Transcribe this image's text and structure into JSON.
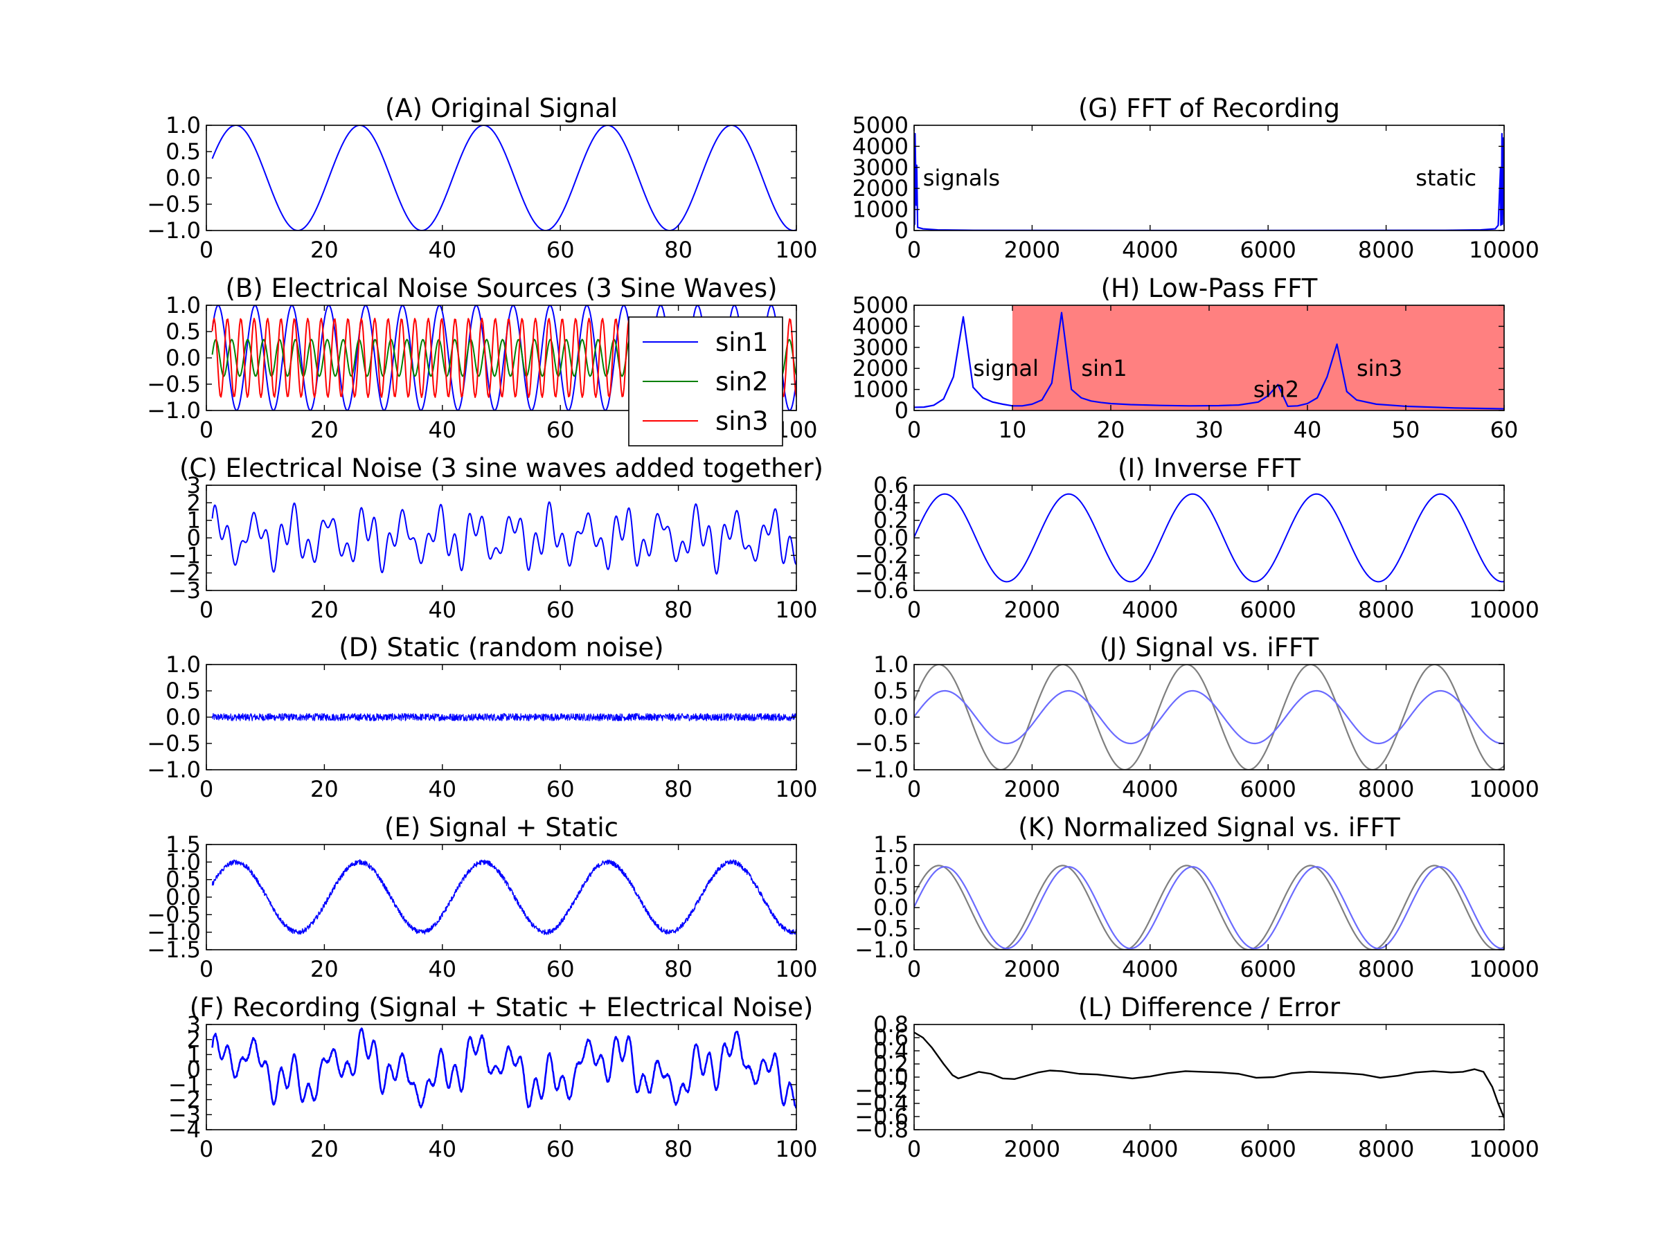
{
  "figure": {
    "colors": {
      "signal": "#0000ff",
      "sin1": "#0000ff",
      "sin2": "#008000",
      "sin3": "#ff0000",
      "ifft": "#6b6bff",
      "reference": "#7f7f7f",
      "error": "#000000",
      "stopband": "#ff8080"
    }
  },
  "chart_data": [
    {
      "id": "A",
      "type": "line",
      "title": "(A) Original Signal",
      "xlim": [
        0,
        100
      ],
      "ylim": [
        -1.0,
        1.0
      ],
      "xticks": [
        0,
        20,
        40,
        60,
        80,
        100
      ],
      "xtick_labels": [
        "0",
        "20",
        "40",
        "60",
        "80",
        "100"
      ],
      "yticks": [
        -1.0,
        -0.5,
        0.0,
        0.5,
        1.0
      ],
      "ytick_labels": [
        "−1.0",
        "−0.5",
        "0.0",
        "0.5",
        "1.0"
      ],
      "series": [
        {
          "style": "signal",
          "formula": "sin",
          "x_start": 1,
          "x_end": 100,
          "period": 21,
          "amplitude": 1.0,
          "peak_x": 5
        }
      ]
    },
    {
      "id": "B",
      "type": "line",
      "title": "(B) Electrical Noise Sources (3 Sine Waves)",
      "xlim": [
        0,
        100
      ],
      "ylim": [
        -1.0,
        1.0
      ],
      "xticks": [
        0,
        20,
        40,
        60,
        80,
        100
      ],
      "xtick_labels": [
        "0",
        "20",
        "40",
        "60",
        "80",
        "100"
      ],
      "yticks": [
        -1.0,
        -0.5,
        0.0,
        0.5,
        1.0
      ],
      "ytick_labels": [
        "−1.0",
        "−0.5",
        "0.0",
        "0.5",
        "1.0"
      ],
      "legend": {
        "placement": "lower-right",
        "entries": [
          "sin1",
          "sin2",
          "sin3"
        ]
      },
      "series": [
        {
          "name": "sin1",
          "style": "sin1",
          "formula": "sin",
          "x_start": 1,
          "x_end": 100,
          "period": 6.25,
          "amplitude": 1.0,
          "peak_x": 2
        },
        {
          "name": "sin2",
          "style": "sin2",
          "formula": "sin",
          "x_start": 1,
          "x_end": 100,
          "period": 2.7,
          "amplitude": 0.35,
          "peak_x": 1.6
        },
        {
          "name": "sin3",
          "style": "sin3",
          "formula": "sin",
          "x_start": 1,
          "x_end": 100,
          "period": 2.27,
          "amplitude": 0.75,
          "peak_x": 1.3
        }
      ]
    },
    {
      "id": "C",
      "type": "line",
      "title": "(C) Electrical Noise (3 sine waves added together)",
      "xlim": [
        0,
        100
      ],
      "ylim": [
        -3,
        3
      ],
      "xticks": [
        0,
        20,
        40,
        60,
        80,
        100
      ],
      "xtick_labels": [
        "0",
        "20",
        "40",
        "60",
        "80",
        "100"
      ],
      "yticks": [
        -3,
        -2,
        -1,
        0,
        1,
        2,
        3
      ],
      "ytick_labels": [
        "−3",
        "−2",
        "−1",
        "0",
        "1",
        "2",
        "3"
      ],
      "series": [
        {
          "style": "signal",
          "formula": "noise_sum",
          "x_start": 1,
          "x_end": 100
        }
      ]
    },
    {
      "id": "D",
      "type": "line",
      "title": "(D) Static (random noise)",
      "xlim": [
        0,
        100
      ],
      "ylim": [
        -1.0,
        1.0
      ],
      "xticks": [
        0,
        20,
        40,
        60,
        80,
        100
      ],
      "xtick_labels": [
        "0",
        "20",
        "40",
        "60",
        "80",
        "100"
      ],
      "yticks": [
        -1.0,
        -0.5,
        0.0,
        0.5,
        1.0
      ],
      "ytick_labels": [
        "−1.0",
        "−0.5",
        "0.0",
        "0.5",
        "1.0"
      ],
      "series": [
        {
          "style": "signal",
          "formula": "static",
          "x_start": 1,
          "x_end": 100,
          "band": 0.07
        }
      ]
    },
    {
      "id": "E",
      "type": "line",
      "title": "(E) Signal + Static",
      "xlim": [
        0,
        100
      ],
      "ylim": [
        -1.5,
        1.5
      ],
      "xticks": [
        0,
        20,
        40,
        60,
        80,
        100
      ],
      "xtick_labels": [
        "0",
        "20",
        "40",
        "60",
        "80",
        "100"
      ],
      "yticks": [
        -1.5,
        -1.0,
        -0.5,
        0.0,
        0.5,
        1.0,
        1.5
      ],
      "ytick_labels": [
        "−1.5",
        "−1.0",
        "−0.5",
        "0.0",
        "0.5",
        "1.0",
        "1.5"
      ],
      "series": [
        {
          "style": "signal",
          "formula": "sin_thick",
          "x_start": 1,
          "x_end": 100,
          "period": 21,
          "amplitude": 1.0,
          "peak_x": 5,
          "band": 0.07
        }
      ]
    },
    {
      "id": "F",
      "type": "line",
      "title": "(F) Recording (Signal + Static + Electrical Noise)",
      "xlim": [
        0,
        100
      ],
      "ylim": [
        -4,
        3
      ],
      "xticks": [
        0,
        20,
        40,
        60,
        80,
        100
      ],
      "xtick_labels": [
        "0",
        "20",
        "40",
        "60",
        "80",
        "100"
      ],
      "yticks": [
        -4,
        -3,
        -2,
        -1,
        0,
        1,
        2,
        3
      ],
      "ytick_labels": [
        "−4",
        "−3",
        "−2",
        "−1",
        "0",
        "1",
        "2",
        "3"
      ],
      "series": [
        {
          "style": "signal",
          "formula": "recording",
          "x_start": 1,
          "x_end": 100
        }
      ]
    },
    {
      "id": "G",
      "type": "line",
      "title": "(G) FFT of Recording",
      "xlim": [
        0,
        10000
      ],
      "ylim": [
        0,
        5000
      ],
      "xticks": [
        0,
        2000,
        4000,
        6000,
        8000,
        10000
      ],
      "xtick_labels": [
        "0",
        "2000",
        "4000",
        "6000",
        "8000",
        "10000"
      ],
      "yticks": [
        0,
        1000,
        2000,
        3000,
        4000,
        5000
      ],
      "ytick_labels": [
        "0",
        "1000",
        "2000",
        "3000",
        "4000",
        "5000"
      ],
      "annotations": [
        {
          "text": "signals",
          "x": 150,
          "y": 2500,
          "anchor": "start"
        },
        {
          "text": "static",
          "x": 8500,
          "y": 2500,
          "anchor": "start"
        }
      ],
      "series": [
        {
          "style": "signal",
          "formula": "points",
          "points": [
            [
              0,
              200
            ],
            [
              5,
              4400
            ],
            [
              10,
              300
            ],
            [
              16,
              4600
            ],
            [
              37,
              1200
            ],
            [
              44,
              3100
            ],
            [
              60,
              150
            ],
            [
              150,
              80
            ],
            [
              400,
              30
            ],
            [
              1000,
              10
            ],
            [
              5000,
              0
            ],
            [
              9000,
              10
            ],
            [
              9600,
              30
            ],
            [
              9850,
              80
            ],
            [
              9900,
              250
            ],
            [
              9940,
              3000
            ],
            [
              9945,
              250
            ],
            [
              9950,
              1200
            ],
            [
              9956,
              300
            ],
            [
              9963,
              4600
            ],
            [
              9970,
              300
            ],
            [
              9990,
              4400
            ],
            [
              10000,
              200
            ]
          ]
        }
      ]
    },
    {
      "id": "H",
      "type": "line",
      "title": "(H) Low-Pass FFT",
      "xlim": [
        0,
        60
      ],
      "ylim": [
        0,
        5000
      ],
      "xticks": [
        0,
        10,
        20,
        30,
        40,
        50,
        60
      ],
      "xtick_labels": [
        "0",
        "10",
        "20",
        "30",
        "40",
        "50",
        "60"
      ],
      "yticks": [
        0,
        1000,
        2000,
        3000,
        4000,
        5000
      ],
      "ytick_labels": [
        "0",
        "1000",
        "2000",
        "3000",
        "4000",
        "5000"
      ],
      "shaded_region": {
        "x_from": 10,
        "x_to": 60
      },
      "annotations": [
        {
          "text": "signal",
          "x": 6.0,
          "y": 2000,
          "anchor": "start"
        },
        {
          "text": "sin1",
          "x": 17.0,
          "y": 2000,
          "anchor": "start"
        },
        {
          "text": "sin2",
          "x": 34.5,
          "y": 1000,
          "anchor": "start"
        },
        {
          "text": "sin3",
          "x": 45.0,
          "y": 2000,
          "anchor": "start"
        }
      ],
      "series": [
        {
          "style": "signal",
          "formula": "points",
          "points": [
            [
              0,
              150
            ],
            [
              1,
              160
            ],
            [
              2,
              250
            ],
            [
              3,
              550
            ],
            [
              4,
              1600
            ],
            [
              5,
              4450
            ],
            [
              6,
              1100
            ],
            [
              7,
              600
            ],
            [
              8,
              400
            ],
            [
              9,
              300
            ],
            [
              10,
              220
            ],
            [
              11,
              220
            ],
            [
              12,
              300
            ],
            [
              13,
              500
            ],
            [
              14,
              1300
            ],
            [
              15,
              4650
            ],
            [
              16,
              1000
            ],
            [
              17,
              600
            ],
            [
              18,
              450
            ],
            [
              19,
              380
            ],
            [
              20,
              330
            ],
            [
              22,
              280
            ],
            [
              25,
              240
            ],
            [
              28,
              220
            ],
            [
              31,
              230
            ],
            [
              33,
              260
            ],
            [
              35,
              400
            ],
            [
              36,
              700
            ],
            [
              37,
              1230
            ],
            [
              38,
              200
            ],
            [
              39,
              220
            ],
            [
              40,
              330
            ],
            [
              41,
              600
            ],
            [
              42,
              1600
            ],
            [
              43,
              3150
            ],
            [
              44,
              900
            ],
            [
              45,
              500
            ],
            [
              47,
              300
            ],
            [
              50,
              200
            ],
            [
              55,
              120
            ],
            [
              60,
              80
            ]
          ]
        }
      ]
    },
    {
      "id": "I",
      "type": "line",
      "title": "(I) Inverse FFT",
      "xlim": [
        0,
        10000
      ],
      "ylim": [
        -0.6,
        0.6
      ],
      "xticks": [
        0,
        2000,
        4000,
        6000,
        8000,
        10000
      ],
      "xtick_labels": [
        "0",
        "2000",
        "4000",
        "6000",
        "8000",
        "10000"
      ],
      "yticks": [
        -0.6,
        -0.4,
        -0.2,
        0.0,
        0.2,
        0.4,
        0.6
      ],
      "ytick_labels": [
        "−0.6",
        "−0.4",
        "−0.2",
        "0.0",
        "0.2",
        "0.4",
        "0.6"
      ],
      "series": [
        {
          "style": "signal",
          "formula": "sin",
          "x_start": 0,
          "x_end": 10000,
          "period": 2100,
          "amplitude": 0.5,
          "peak_x": 520
        }
      ]
    },
    {
      "id": "J",
      "type": "line",
      "title": "(J) Signal vs. iFFT",
      "xlim": [
        0,
        10000
      ],
      "ylim": [
        -1.0,
        1.0
      ],
      "xticks": [
        0,
        2000,
        4000,
        6000,
        8000,
        10000
      ],
      "xtick_labels": [
        "0",
        "2000",
        "4000",
        "6000",
        "8000",
        "10000"
      ],
      "yticks": [
        -1.0,
        -0.5,
        0.0,
        0.5,
        1.0
      ],
      "ytick_labels": [
        "−1.0",
        "−0.5",
        "0.0",
        "0.5",
        "1.0"
      ],
      "series": [
        {
          "style": "reference",
          "formula": "sin",
          "x_start": 0,
          "x_end": 10000,
          "period": 2100,
          "amplitude": 1.0,
          "peak_x": 420
        },
        {
          "style": "ifft",
          "formula": "sin",
          "x_start": 0,
          "x_end": 10000,
          "period": 2100,
          "amplitude": 0.5,
          "peak_x": 520
        }
      ]
    },
    {
      "id": "K",
      "type": "line",
      "title": "(K) Normalized Signal vs. iFFT",
      "xlim": [
        0,
        10000
      ],
      "ylim": [
        -1.0,
        1.5
      ],
      "xticks": [
        0,
        2000,
        4000,
        6000,
        8000,
        10000
      ],
      "xtick_labels": [
        "0",
        "2000",
        "4000",
        "6000",
        "8000",
        "10000"
      ],
      "yticks": [
        -1.0,
        -0.5,
        0.0,
        0.5,
        1.0,
        1.5
      ],
      "ytick_labels": [
        "−1.0",
        "−0.5",
        "0.0",
        "0.5",
        "1.0",
        "1.5"
      ],
      "series": [
        {
          "style": "reference",
          "formula": "sin",
          "x_start": 0,
          "x_end": 10000,
          "period": 2100,
          "amplitude": 1.0,
          "peak_x": 420
        },
        {
          "style": "ifft",
          "formula": "sin",
          "x_start": 0,
          "x_end": 10000,
          "period": 2100,
          "amplitude": 0.97,
          "peak_x": 520
        }
      ]
    },
    {
      "id": "L",
      "type": "line",
      "title": "(L) Difference / Error",
      "xlim": [
        0,
        10000
      ],
      "ylim": [
        -0.8,
        0.8
      ],
      "xticks": [
        0,
        2000,
        4000,
        6000,
        8000,
        10000
      ],
      "xtick_labels": [
        "0",
        "2000",
        "4000",
        "6000",
        "8000",
        "10000"
      ],
      "yticks": [
        -0.8,
        -0.6,
        -0.4,
        -0.2,
        0.0,
        0.2,
        0.4,
        0.6,
        0.8
      ],
      "ytick_labels": [
        "−0.8",
        "−0.6",
        "−0.4",
        "−0.2",
        "0.0",
        "0.2",
        "0.4",
        "0.6",
        "0.8"
      ],
      "series": [
        {
          "style": "error",
          "formula": "points",
          "points": [
            [
              0,
              0.68
            ],
            [
              150,
              0.6
            ],
            [
              300,
              0.45
            ],
            [
              500,
              0.2
            ],
            [
              650,
              0.03
            ],
            [
              750,
              -0.02
            ],
            [
              900,
              0.02
            ],
            [
              1100,
              0.08
            ],
            [
              1300,
              0.05
            ],
            [
              1500,
              -0.02
            ],
            [
              1700,
              -0.03
            ],
            [
              1900,
              0.02
            ],
            [
              2100,
              0.07
            ],
            [
              2300,
              0.1
            ],
            [
              2500,
              0.09
            ],
            [
              2800,
              0.05
            ],
            [
              3100,
              0.04
            ],
            [
              3400,
              0.01
            ],
            [
              3700,
              -0.02
            ],
            [
              4000,
              0.01
            ],
            [
              4300,
              0.06
            ],
            [
              4600,
              0.09
            ],
            [
              4900,
              0.08
            ],
            [
              5200,
              0.07
            ],
            [
              5500,
              0.05
            ],
            [
              5800,
              -0.01
            ],
            [
              6100,
              0.0
            ],
            [
              6400,
              0.06
            ],
            [
              6700,
              0.08
            ],
            [
              7000,
              0.07
            ],
            [
              7300,
              0.06
            ],
            [
              7600,
              0.04
            ],
            [
              7900,
              -0.01
            ],
            [
              8200,
              0.02
            ],
            [
              8500,
              0.07
            ],
            [
              8800,
              0.09
            ],
            [
              9100,
              0.07
            ],
            [
              9300,
              0.08
            ],
            [
              9500,
              0.12
            ],
            [
              9650,
              0.08
            ],
            [
              9800,
              -0.15
            ],
            [
              9900,
              -0.4
            ],
            [
              10000,
              -0.62
            ]
          ]
        }
      ]
    }
  ]
}
